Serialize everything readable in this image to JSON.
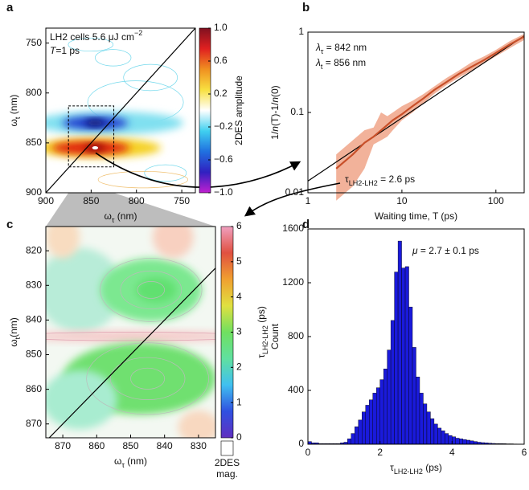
{
  "chart_data": [
    {
      "type": "heatmap",
      "panel_label": "a",
      "annotations": [
        [
          {
            "text": "LH2 cells 5.6 μJ cm"
          },
          {
            "text": "−2",
            "sup": true
          }
        ],
        [
          {
            "text": "T",
            "italic": true
          },
          {
            "text": "=1 ps"
          }
        ]
      ],
      "x_label": [
        {
          "text": "ω"
        },
        {
          "text": "τ",
          "sub": true
        },
        {
          "text": " (nm)"
        }
      ],
      "y_label": [
        {
          "text": "ω"
        },
        {
          "text": "t",
          "sub": true
        },
        {
          "text": " (nm)"
        }
      ],
      "xlim": [
        900,
        735
      ],
      "ylim": [
        900,
        735
      ],
      "xticks": [
        900,
        850,
        800,
        750
      ],
      "yticks": [
        750,
        800,
        850,
        900
      ],
      "colorbar": {
        "label": "2DES amplitude",
        "lim": [
          -1,
          1
        ],
        "ticks": [
          {
            "value": -1,
            "label": "−1.0"
          },
          {
            "value": -0.6,
            "label": "−0.6"
          },
          {
            "value": -0.2,
            "label": "−0.2"
          },
          0.2,
          0.6,
          {
            "value": 1,
            "label": "1.0"
          }
        ],
        "colors": [
          "#c020d0",
          "#3020c0",
          "#2070e0",
          "#40d0f0",
          "#ffffff",
          "#f8e040",
          "#f09020",
          "#e02020",
          "#801020"
        ]
      }
    },
    {
      "type": "line",
      "panel_label": "b",
      "x_label": "Waiting time, T (ps)",
      "y_label": [
        {
          "text": "1/"
        },
        {
          "text": "n",
          "italic": true
        },
        {
          "text": "(T)-1/"
        },
        {
          "text": "n",
          "italic": true
        },
        {
          "text": "(0)"
        }
      ],
      "xscale": "log",
      "yscale": "log",
      "xlim": [
        1,
        200
      ],
      "ylim": [
        0.01,
        1
      ],
      "xticks": [
        1,
        10,
        100
      ],
      "yticks": [
        0.01,
        0.1,
        1
      ],
      "annotations": [
        [
          {
            "text": "λ",
            "italic": true
          },
          {
            "text": "τ",
            "sub": true
          },
          {
            "text": " = 842 nm"
          }
        ],
        [
          {
            "text": "λ",
            "italic": true
          },
          {
            "text": "t",
            "sub": true
          },
          {
            "text": " = 856 nm"
          }
        ]
      ],
      "fit_label": [
        {
          "text": "τ"
        },
        {
          "text": "LH2-LH2",
          "sub": true
        },
        {
          "text": " = 2.6 ps"
        }
      ],
      "series": [
        {
          "color": "#000000",
          "x": [
            1,
            200
          ],
          "values": [
            0.014,
            0.9
          ]
        },
        {
          "color": "#c8502a",
          "band_color": "#f2b29a",
          "x": [
            2,
            3,
            4,
            5,
            6,
            7,
            8,
            10,
            13,
            17,
            22,
            30,
            40,
            55,
            75,
            100,
            140,
            200
          ],
          "values": [
            0.02,
            0.03,
            0.042,
            0.05,
            0.06,
            0.07,
            0.08,
            0.095,
            0.12,
            0.15,
            0.19,
            0.24,
            0.3,
            0.37,
            0.45,
            0.55,
            0.7,
            0.88
          ],
          "lower": [
            0.008,
            0.012,
            0.02,
            0.04,
            0.045,
            0.05,
            0.06,
            0.08,
            0.1,
            0.13,
            0.17,
            0.22,
            0.27,
            0.33,
            0.41,
            0.5,
            0.63,
            0.8
          ],
          "upper": [
            0.03,
            0.045,
            0.06,
            0.065,
            0.1,
            0.09,
            0.1,
            0.12,
            0.14,
            0.17,
            0.21,
            0.27,
            0.33,
            0.42,
            0.5,
            0.6,
            0.77,
            0.95
          ]
        }
      ]
    },
    {
      "type": "heatmap",
      "panel_label": "c",
      "x_label": [
        {
          "text": "ω"
        },
        {
          "text": "τ",
          "sub": true
        },
        {
          "text": " (nm)"
        }
      ],
      "y_label": [
        {
          "text": "ω"
        },
        {
          "text": "t",
          "sub": true
        },
        {
          "text": "(nm)"
        }
      ],
      "xlim": [
        875,
        825
      ],
      "ylim": [
        874,
        813
      ],
      "xticks": [
        870,
        860,
        850,
        840,
        830
      ],
      "yticks": [
        820,
        830,
        840,
        850,
        860,
        870
      ],
      "colorbar": {
        "label": [
          {
            "text": "τ"
          },
          {
            "text": "LH2-LH2",
            "sub": true
          },
          {
            "text": " (ps)"
          }
        ],
        "footer": [
          "2DES",
          "mag."
        ],
        "lim": [
          0,
          6
        ],
        "ticks": [
          0,
          1,
          2,
          3,
          4,
          5,
          6
        ],
        "colors": [
          "#6030c0",
          "#3050e0",
          "#40c0f0",
          "#60e0a0",
          "#70e060",
          "#e0e040",
          "#f0a030",
          "#e05040",
          "#f0a0c0"
        ]
      }
    },
    {
      "type": "histogram",
      "panel_label": "d",
      "color": "#1a1adb",
      "annotation": [
        {
          "text": "μ",
          "italic": true
        },
        {
          "text": " = 2.7 ± 0.1 ps"
        }
      ],
      "x_label": [
        {
          "text": "τ"
        },
        {
          "text": "LH2-LH2",
          "sub": true
        },
        {
          "text": " (ps)"
        }
      ],
      "y_label": "Count",
      "xlim": [
        0,
        6
      ],
      "ylim": [
        0,
        1600
      ],
      "xticks": [
        0,
        2,
        4,
        6
      ],
      "yticks": [
        0,
        400,
        800,
        1200,
        1600
      ],
      "bins": [
        0,
        0.1,
        0.2,
        0.3,
        0.4,
        0.5,
        0.6,
        0.7,
        0.8,
        0.9,
        1,
        1.1,
        1.2,
        1.3,
        1.4,
        1.5,
        1.6,
        1.7,
        1.8,
        1.9,
        2,
        2.1,
        2.2,
        2.3,
        2.4,
        2.5,
        2.6,
        2.7,
        2.8,
        2.9,
        3,
        3.1,
        3.2,
        3.3,
        3.4,
        3.5,
        3.6,
        3.7,
        3.8,
        3.9,
        4,
        4.1,
        4.2,
        4.3,
        4.4,
        4.5,
        4.6,
        4.7,
        4.8,
        4.9,
        5,
        5.1,
        5.2,
        5.3,
        5.4,
        5.5,
        5.6,
        5.7,
        5.8,
        5.9,
        6
      ],
      "counts": [
        20,
        10,
        10,
        5,
        5,
        5,
        5,
        5,
        5,
        10,
        15,
        40,
        80,
        130,
        180,
        240,
        290,
        330,
        380,
        420,
        480,
        560,
        700,
        920,
        1280,
        1510,
        1310,
        1320,
        1020,
        720,
        500,
        380,
        300,
        240,
        190,
        150,
        120,
        100,
        80,
        65,
        55,
        45,
        40,
        35,
        30,
        25,
        20,
        15,
        12,
        10,
        8,
        6,
        5,
        5,
        4,
        3,
        3,
        2,
        1,
        1
      ]
    }
  ]
}
